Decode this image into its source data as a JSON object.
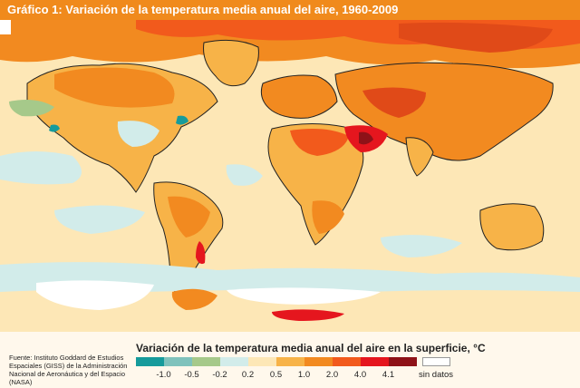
{
  "header": {
    "title": "Gráfico 1:  Variación de la temperatura media anual del aire, 1960-2009"
  },
  "legend": {
    "title": "Variación de la temperatura media anual del aire en la superficie, °C",
    "items": [
      {
        "label": "-1.0",
        "color": "#169b9b"
      },
      {
        "label": "-0.5",
        "color": "#7fc2bc"
      },
      {
        "label": "-0.2",
        "color": "#a6c98a"
      },
      {
        "label": "0.2",
        "color": "#d2ecea"
      },
      {
        "label": "0.5",
        "color": "#fde7b6"
      },
      {
        "label": "1.0",
        "color": "#f7b348"
      },
      {
        "label": "2.0",
        "color": "#f28a20"
      },
      {
        "label": "4.0",
        "color": "#f25a1c"
      },
      {
        "label": "4.1",
        "color": "#e5161e"
      },
      {
        "label": "",
        "color": "#8e1218"
      },
      {
        "label": "sin datos",
        "color": "#ffffff"
      }
    ]
  },
  "source": {
    "text": "Fuente: Instituto Goddard de Estudios Espaciales (GISS) de la Administración Nacional de Aeronáutica y del Espacio (NASA)"
  }
}
